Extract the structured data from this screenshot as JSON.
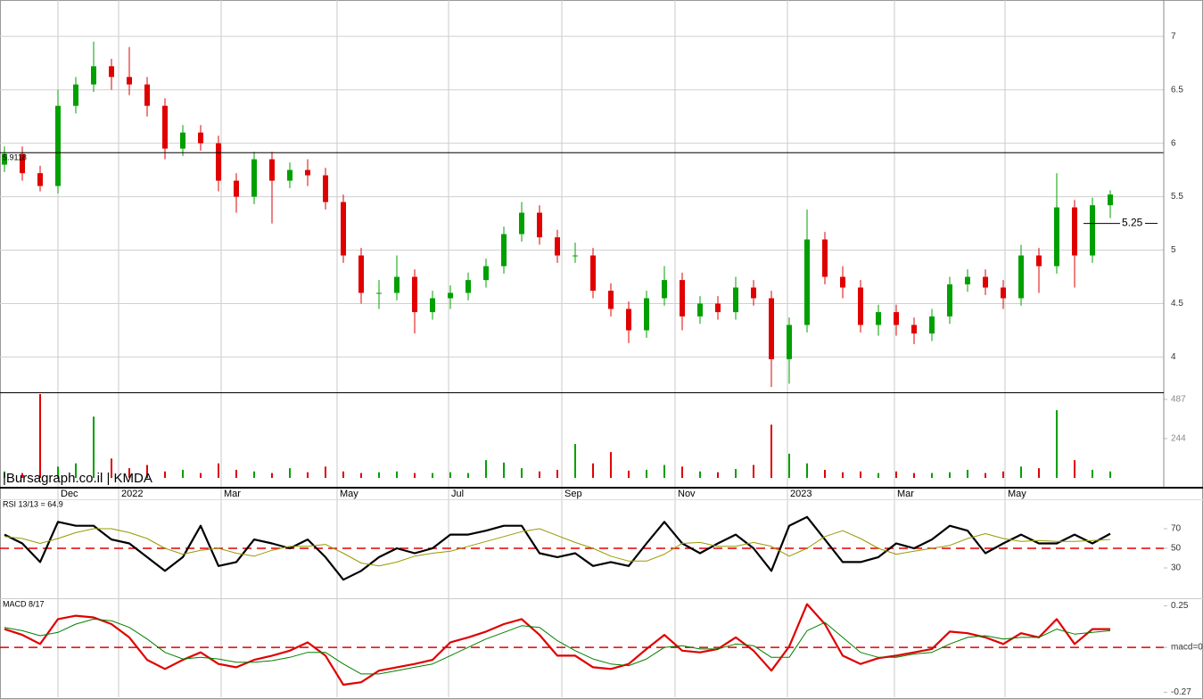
{
  "watermark": "|Bursagraph.co.il | KMDA",
  "chart_data": [
    {
      "type": "candlestick",
      "open": [
        5.8,
        5.9,
        5.72,
        5.6,
        6.35,
        6.55,
        6.72,
        6.62,
        6.55,
        6.35,
        5.95,
        6.1,
        6.0,
        5.65,
        5.5,
        5.85,
        5.65,
        5.75,
        5.7,
        5.45,
        4.95,
        4.6,
        4.6,
        4.75,
        4.42,
        4.55,
        4.6,
        4.72,
        4.85,
        5.15,
        5.35,
        5.12,
        4.95,
        4.95,
        4.62,
        4.45,
        4.25,
        4.55,
        4.72,
        4.38,
        4.5,
        4.42,
        4.65,
        4.55,
        3.98,
        4.3,
        5.1,
        4.75,
        4.65,
        4.3,
        4.42,
        4.3,
        4.22,
        4.38,
        4.68,
        4.75,
        4.65,
        4.55,
        4.95,
        4.85,
        5.4,
        4.95,
        5.42
      ],
      "high": [
        5.97,
        5.97,
        5.79,
        6.5,
        6.62,
        6.95,
        6.79,
        6.9,
        6.62,
        6.42,
        6.17,
        6.17,
        6.07,
        5.72,
        5.92,
        5.92,
        5.82,
        5.85,
        5.77,
        5.52,
        5.02,
        4.72,
        4.95,
        4.82,
        4.62,
        4.67,
        4.79,
        4.92,
        5.22,
        5.45,
        5.42,
        5.19,
        5.07,
        5.02,
        4.69,
        4.52,
        4.62,
        4.85,
        4.79,
        4.57,
        4.57,
        4.75,
        4.72,
        4.62,
        4.37,
        5.38,
        5.17,
        4.85,
        4.72,
        4.49,
        4.49,
        4.37,
        4.45,
        4.75,
        4.82,
        4.82,
        4.72,
        5.05,
        5.02,
        5.72,
        5.47,
        5.49,
        5.56
      ],
      "low": [
        5.73,
        5.65,
        5.55,
        5.53,
        6.28,
        6.48,
        6.5,
        6.45,
        6.25,
        5.85,
        5.88,
        5.93,
        5.55,
        5.35,
        5.43,
        5.25,
        5.58,
        5.6,
        5.38,
        4.88,
        4.5,
        4.45,
        4.53,
        4.22,
        4.35,
        4.45,
        4.53,
        4.65,
        4.78,
        5.08,
        5.05,
        4.88,
        4.88,
        4.55,
        4.38,
        4.13,
        4.18,
        4.48,
        4.25,
        4.31,
        4.35,
        4.35,
        4.48,
        3.72,
        3.75,
        4.23,
        4.68,
        4.55,
        4.23,
        4.2,
        4.2,
        4.12,
        4.15,
        4.31,
        4.61,
        4.58,
        4.45,
        4.48,
        4.6,
        4.78,
        4.65,
        4.88,
        5.3
      ],
      "close": [
        5.9,
        5.72,
        5.6,
        6.35,
        6.55,
        6.72,
        6.62,
        6.55,
        6.35,
        5.95,
        6.1,
        6.0,
        5.65,
        5.5,
        5.85,
        5.65,
        5.75,
        5.7,
        5.45,
        4.95,
        4.6,
        4.6,
        4.75,
        4.42,
        4.55,
        4.6,
        4.72,
        4.85,
        5.15,
        5.35,
        5.12,
        4.95,
        4.95,
        4.62,
        4.45,
        4.25,
        4.55,
        4.72,
        4.38,
        4.5,
        4.42,
        4.65,
        4.55,
        3.98,
        4.3,
        5.1,
        4.75,
        4.65,
        4.3,
        4.42,
        4.3,
        4.22,
        4.38,
        4.68,
        4.75,
        4.65,
        4.55,
        4.95,
        4.85,
        5.4,
        4.95,
        5.42,
        5.52
      ],
      "up_color": "#00a000",
      "down_color": "#e00000",
      "xlim": [
        -0.25,
        65
      ],
      "ylim": [
        3.67,
        7.34
      ],
      "yticks": [
        4,
        4.5,
        5,
        5.5,
        6,
        6.5,
        7
      ],
      "grid": true,
      "reference_lines": [
        5.9118,
        5.25
      ]
    },
    {
      "type": "bar",
      "values": [
        40,
        30,
        520,
        70,
        90,
        380,
        120,
        60,
        80,
        40,
        50,
        30,
        90,
        50,
        40,
        30,
        60,
        35,
        70,
        40,
        30,
        35,
        40,
        30,
        30,
        35,
        30,
        110,
        95,
        60,
        40,
        50,
        210,
        90,
        160,
        45,
        50,
        80,
        70,
        40,
        35,
        55,
        80,
        330,
        150,
        90,
        50,
        35,
        40,
        30,
        40,
        30,
        30,
        35,
        50,
        30,
        40,
        70,
        60,
        420,
        110,
        50,
        40
      ],
      "ylim": [
        0,
        531
      ],
      "yticks": [
        244,
        487
      ],
      "xticks": [
        {
          "value": 3.0,
          "label": "Dec"
        },
        {
          "value": 6.4,
          "label": "2022"
        },
        {
          "value": 12.15,
          "label": "Mar"
        },
        {
          "value": 18.65,
          "label": "May"
        },
        {
          "value": 24.9,
          "label": "Jul"
        },
        {
          "value": 31.25,
          "label": "Sep"
        },
        {
          "value": 37.6,
          "label": "Nov"
        },
        {
          "value": 43.9,
          "label": "2023"
        },
        {
          "value": 49.9,
          "label": "Mar"
        },
        {
          "value": 56.1,
          "label": "May"
        }
      ]
    },
    {
      "type": "line",
      "title": "RSI 13/13 = 64.9",
      "series": [
        {
          "color": "#000000",
          "values": [
            64,
            55,
            36,
            77,
            73,
            73,
            59,
            55,
            41,
            27,
            41,
            73,
            32,
            36,
            59,
            55,
            50,
            59,
            41,
            18,
            27,
            41,
            50,
            45,
            50,
            64,
            64,
            68,
            73,
            73,
            45,
            41,
            45,
            32,
            36,
            32,
            55,
            77,
            55,
            45,
            55,
            64,
            50,
            27,
            73,
            82,
            59,
            36,
            36,
            41,
            55,
            50,
            59,
            73,
            68,
            45,
            55,
            64,
            55,
            55,
            64,
            55,
            64.9
          ]
        },
        {
          "color": "#999900",
          "values": [
            62,
            60,
            55,
            60,
            66,
            70,
            70,
            66,
            60,
            50,
            44,
            48,
            50,
            45,
            42,
            48,
            52,
            52,
            54,
            45,
            35,
            32,
            36,
            42,
            45,
            47,
            52,
            57,
            62,
            67,
            70,
            63,
            56,
            50,
            42,
            37,
            37,
            44,
            55,
            56,
            52,
            52,
            56,
            52,
            42,
            50,
            62,
            68,
            60,
            50,
            44,
            47,
            50,
            53,
            60,
            65,
            60,
            57,
            58,
            57,
            57,
            58,
            59
          ]
        }
      ],
      "ylim": [
        0,
        100
      ],
      "yticks": [
        30,
        50,
        70
      ],
      "threshold": 50
    },
    {
      "type": "line",
      "title": "MACD 8/17",
      "series": [
        {
          "color": "#e00000",
          "values": [
            0.11,
            0.075,
            0.02,
            0.17,
            0.19,
            0.18,
            0.14,
            0.06,
            -0.075,
            -0.13,
            -0.075,
            -0.03,
            -0.1,
            -0.12,
            -0.075,
            -0.05,
            -0.02,
            0.03,
            -0.05,
            -0.225,
            -0.21,
            -0.14,
            -0.12,
            -0.1,
            -0.075,
            0.03,
            0.06,
            0.095,
            0.14,
            0.17,
            0.075,
            -0.05,
            -0.05,
            -0.12,
            -0.13,
            -0.1,
            -0.01,
            0.075,
            -0.02,
            -0.03,
            -0.01,
            0.06,
            -0.02,
            -0.14,
            0.005,
            0.26,
            0.14,
            -0.05,
            -0.1,
            -0.065,
            -0.05,
            -0.03,
            -0.01,
            0.095,
            0.085,
            0.06,
            0.02,
            0.085,
            0.06,
            0.17,
            0.02,
            0.11,
            0.11
          ]
        },
        {
          "color": "#008000",
          "values": [
            0.12,
            0.1,
            0.07,
            0.09,
            0.14,
            0.17,
            0.16,
            0.12,
            0.05,
            -0.03,
            -0.07,
            -0.06,
            -0.07,
            -0.09,
            -0.09,
            -0.08,
            -0.06,
            -0.03,
            -0.03,
            -0.1,
            -0.16,
            -0.16,
            -0.14,
            -0.12,
            -0.1,
            -0.05,
            0,
            0.05,
            0.09,
            0.13,
            0.12,
            0.04,
            -0.02,
            -0.07,
            -0.1,
            -0.11,
            -0.07,
            0,
            0.01,
            -0.01,
            -0.01,
            0.02,
            0.01,
            -0.06,
            -0.06,
            0.1,
            0.15,
            0.06,
            -0.03,
            -0.06,
            -0.06,
            -0.04,
            -0.03,
            0.02,
            0.06,
            0.07,
            0.05,
            0.06,
            0.06,
            0.11,
            0.08,
            0.09,
            0.1
          ]
        }
      ],
      "ylim": [
        -0.3,
        0.29
      ],
      "yticks": [
        0.25,
        {
          "value": 0,
          "label": "macd=0"
        },
        -0.27
      ],
      "threshold": 0
    }
  ]
}
